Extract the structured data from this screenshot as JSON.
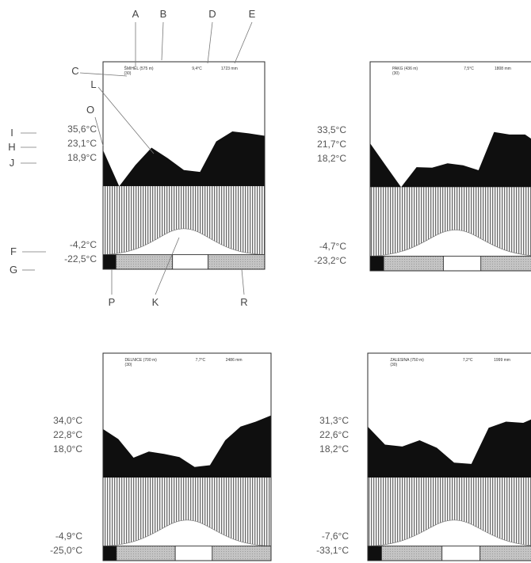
{
  "panels": [
    {
      "header": {
        "station": "ŠMIHEL (575 m)",
        "years": "(30)",
        "mean_temp": "9,4°C",
        "precip": "1723 mm"
      },
      "temps": {
        "abs_max": "35,6°C",
        "mean_max": "23,1°C",
        "mean": "18,9°C",
        "mean_min": "-4,2°C",
        "abs_min": "-22,5°C"
      },
      "precip_profile": [
        0.58,
        0.0,
        0.34,
        0.62,
        0.45,
        0.26,
        0.23,
        0.72,
        0.88,
        0.85,
        0.81
      ]
    },
    {
      "header": {
        "station": "PAKG (436 m)",
        "years": "(30)",
        "mean_temp": "7,5°C",
        "precip": "1808 mm"
      },
      "temps": {
        "abs_max": "33,5°C",
        "mean_max": "21,7°C",
        "mean": "18,2°C",
        "mean_min": "-4,7°C",
        "abs_min": "-23,2°C"
      },
      "precip_profile": [
        0.7,
        0.35,
        0.0,
        0.32,
        0.31,
        0.38,
        0.35,
        0.27,
        0.88,
        0.84,
        0.84,
        0.67
      ]
    },
    {
      "header": {
        "station": "DELNICE (700 m)",
        "years": "(30)",
        "mean_temp": "7,7°C",
        "precip": "2486 mm"
      },
      "temps": {
        "abs_max": "34,0°C",
        "mean_max": "22,8°C",
        "mean": "18,0°C",
        "mean_min": "-4,9°C",
        "abs_min": "-25,0°C"
      },
      "precip_profile": [
        0.78,
        0.62,
        0.32,
        0.42,
        0.38,
        0.33,
        0.17,
        0.2,
        0.6,
        0.82,
        0.9,
        1.0
      ]
    },
    {
      "header": {
        "station": "ZALESINA (750 m)",
        "years": "(30)",
        "mean_temp": "7,2°C",
        "precip": "1999 mm"
      },
      "temps": {
        "abs_max": "31,3°C",
        "mean_max": "22,6°C",
        "mean": "18,2°C",
        "mean_min": "-7,6°C",
        "abs_min": "-33,1°C"
      },
      "precip_profile": [
        0.82,
        0.53,
        0.5,
        0.6,
        0.48,
        0.24,
        0.22,
        0.8,
        0.9,
        0.88,
        1.0
      ]
    }
  ],
  "annotations": {
    "letters_top": [
      "A",
      "B",
      "D",
      "E"
    ],
    "letters_left": [
      "C",
      "L",
      "O",
      "I",
      "H",
      "J",
      "F",
      "G"
    ],
    "letters_bottom": [
      "P",
      "K",
      "R"
    ]
  },
  "colors": {
    "frame": "#2b2b2b",
    "fill_dark": "#0f0f0f",
    "stripe": "#6b6b6b",
    "bar_grey": "#bdbdbd",
    "text": "#444444"
  }
}
